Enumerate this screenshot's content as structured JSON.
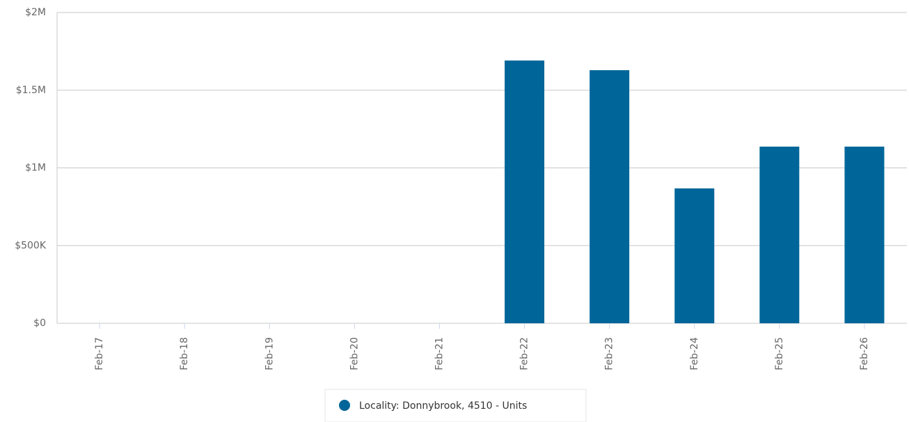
{
  "chart_data": {
    "type": "bar",
    "categories": [
      "Feb-17",
      "Feb-18",
      "Feb-19",
      "Feb-20",
      "Feb-21",
      "Feb-22",
      "Feb-23",
      "Feb-24",
      "Feb-25",
      "Feb-26"
    ],
    "series": [
      {
        "name": "Locality: Donnybrook, 4510 - Units",
        "color": "#006699",
        "values": [
          null,
          null,
          null,
          null,
          null,
          1691000,
          1629000,
          868000,
          1137000,
          1137000
        ]
      }
    ],
    "ylim": [
      0,
      2000000
    ],
    "yticks": [
      {
        "value": 0,
        "label": "$0"
      },
      {
        "value": 500000,
        "label": "$500K"
      },
      {
        "value": 1000000,
        "label": "$1M"
      },
      {
        "value": 1500000,
        "label": "$1.5M"
      },
      {
        "value": 2000000,
        "label": "$2M"
      }
    ],
    "grid": true,
    "legend": "bottom"
  }
}
